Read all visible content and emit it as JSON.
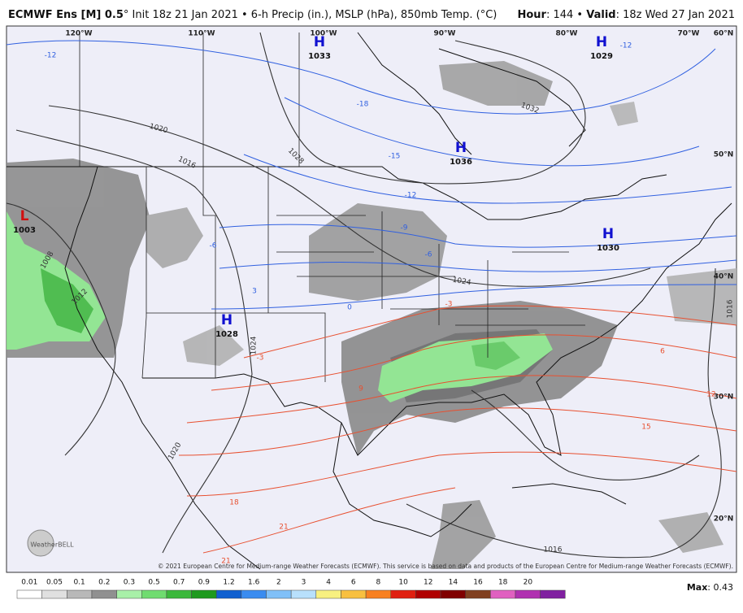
{
  "header": {
    "model": "ECMWF Ens [M] 0.5",
    "init": "° Init 18z 21 Jan 2021 • 6-h Precip (in.), MSLP (hPa), 850mb Temp. (°C)",
    "hour_label": "Hour",
    "hour": ": 144 • ",
    "valid_label": "Valid",
    "valid": ": 18z Wed 27 Jan 2021"
  },
  "map": {
    "longitude_labels": [
      "120°W",
      "110°W",
      "100°W",
      "90°W",
      "80°W",
      "70°W"
    ],
    "latitude_labels": [
      "60°N",
      "50°N",
      "40°N",
      "30°N",
      "20°N"
    ],
    "pressure_centers": [
      {
        "type": "H",
        "value": "1033"
      },
      {
        "type": "H",
        "value": "1029"
      },
      {
        "type": "H",
        "value": "1036"
      },
      {
        "type": "H",
        "value": "1030"
      },
      {
        "type": "H",
        "value": "1028"
      },
      {
        "type": "L",
        "value": "1003"
      }
    ],
    "isobar_labels": [
      "1020",
      "1016",
      "1028",
      "1032",
      "1024",
      "1012",
      "1008",
      "1016",
      "1016",
      "1024",
      "1020"
    ],
    "temperature_labels": [
      "-12",
      "-18",
      "-15",
      "-12",
      "-12",
      "-9",
      "-6",
      "-6",
      "-3",
      "0",
      "3",
      "-3",
      "6",
      "9",
      "12",
      "15",
      "18",
      "21",
      "21"
    ],
    "logo": "WeatherBELL",
    "copyright": "© 2021 European Centre for Medium-range Weather Forecasts (ECMWF). This service is based on data and products of the European Centre for Medium-range Weather Forecasts (ECMWF)."
  },
  "colorbar": {
    "labels": [
      "0.01",
      "0.05",
      "0.1",
      "0.2",
      "0.3",
      "0.5",
      "0.7",
      "0.9",
      "1.2",
      "1.6",
      "2",
      "3",
      "4",
      "6",
      "8",
      "10",
      "12",
      "14",
      "16",
      "18",
      "20"
    ]
  },
  "max": {
    "label": "Max",
    "value": ": 0.43"
  }
}
